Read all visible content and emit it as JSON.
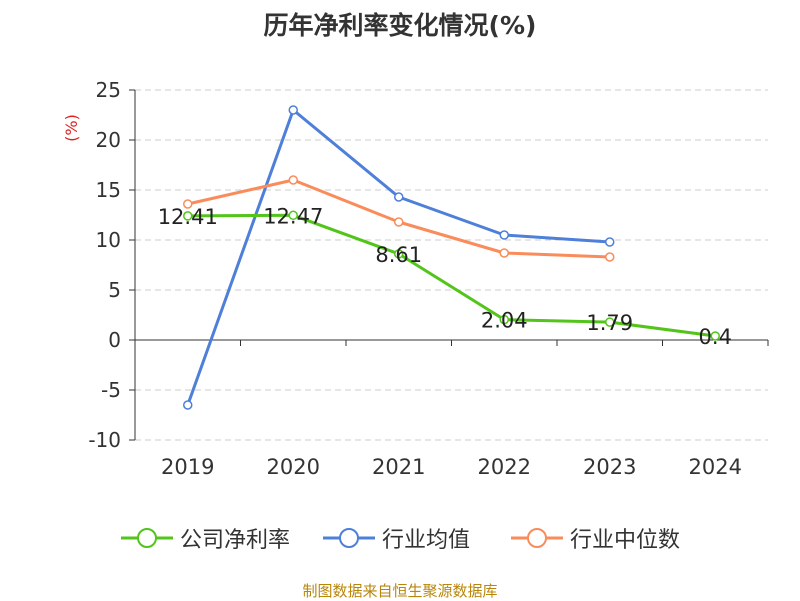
{
  "title": "历年净利率变化情况(%)",
  "source": "制图数据来自恒生聚源数据库",
  "chart_data": {
    "type": "line",
    "title": "历年净利率变化情况(%)",
    "ylabel": "(%)",
    "categories": [
      "2019",
      "2020",
      "2021",
      "2022",
      "2023",
      "2024"
    ],
    "ylim": [
      -10,
      25
    ],
    "yticks": [
      -10,
      -5,
      0,
      5,
      10,
      15,
      20,
      25
    ],
    "grid": true,
    "legend_position": "bottom",
    "series": [
      {
        "name": "公司净利率",
        "color": "#52c41a",
        "values": [
          12.41,
          12.47,
          8.61,
          2.04,
          1.79,
          0.4
        ],
        "labels": [
          "12.41",
          "12.47",
          "8.61",
          "2.04",
          "1.79",
          "0.4"
        ]
      },
      {
        "name": "行业均值",
        "color": "#4e7fd9",
        "values": [
          -6.5,
          23.0,
          14.3,
          10.5,
          9.8,
          null
        ]
      },
      {
        "name": "行业中位数",
        "color": "#fa8c5c",
        "values": [
          13.6,
          16.0,
          11.8,
          8.7,
          8.3,
          null
        ]
      }
    ]
  }
}
